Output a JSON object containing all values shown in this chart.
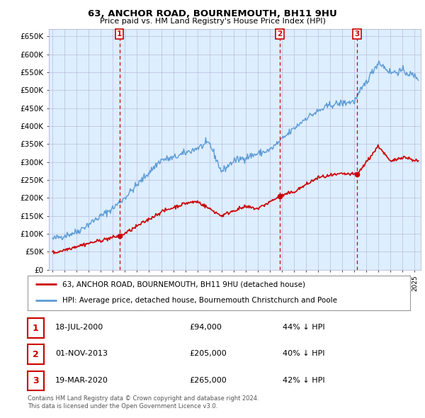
{
  "title": "63, ANCHOR ROAD, BOURNEMOUTH, BH11 9HU",
  "subtitle": "Price paid vs. HM Land Registry's House Price Index (HPI)",
  "ylabel_ticks": [
    "£0",
    "£50K",
    "£100K",
    "£150K",
    "£200K",
    "£250K",
    "£300K",
    "£350K",
    "£400K",
    "£450K",
    "£500K",
    "£550K",
    "£600K",
    "£650K"
  ],
  "ytick_values": [
    0,
    50000,
    100000,
    150000,
    200000,
    250000,
    300000,
    350000,
    400000,
    450000,
    500000,
    550000,
    600000,
    650000
  ],
  "ylim": [
    0,
    670000
  ],
  "xlim_start": 1994.7,
  "xlim_end": 2025.5,
  "hpi_color": "#5b9bd5",
  "chart_bg": "#ddeeff",
  "sale_color": "#cc0000",
  "sale_points": [
    {
      "year": 2000.54,
      "price": 94000,
      "label": "1"
    },
    {
      "year": 2013.83,
      "price": 205000,
      "label": "2"
    },
    {
      "year": 2020.22,
      "price": 265000,
      "label": "3"
    }
  ],
  "vline_color": "#cc0000",
  "legend_sale": "63, ANCHOR ROAD, BOURNEMOUTH, BH11 9HU (detached house)",
  "legend_hpi": "HPI: Average price, detached house, Bournemouth Christchurch and Poole",
  "table_rows": [
    {
      "num": "1",
      "date": "18-JUL-2000",
      "price": "£94,000",
      "pct": "44% ↓ HPI"
    },
    {
      "num": "2",
      "date": "01-NOV-2013",
      "price": "£205,000",
      "pct": "40% ↓ HPI"
    },
    {
      "num": "3",
      "date": "19-MAR-2020",
      "price": "£265,000",
      "pct": "42% ↓ HPI"
    }
  ],
  "footnote": "Contains HM Land Registry data © Crown copyright and database right 2024.\nThis data is licensed under the Open Government Licence v3.0.",
  "background_color": "#ffffff",
  "grid_color": "#aaaacc"
}
